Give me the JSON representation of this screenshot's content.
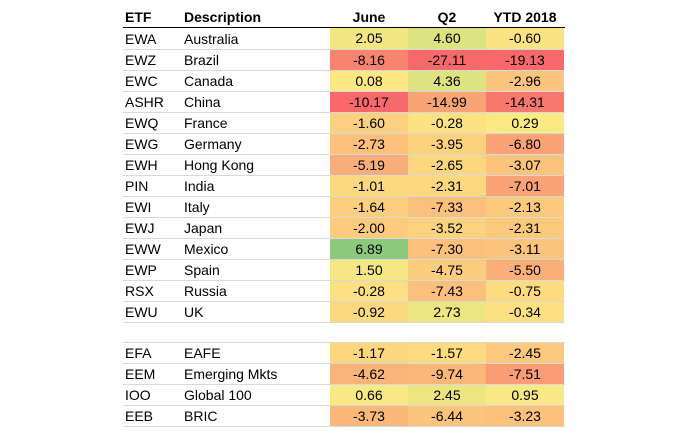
{
  "headers": {
    "etf": "ETF",
    "description": "Description",
    "june": "June",
    "q2": "Q2",
    "ytd": "YTD 2018"
  },
  "rows": [
    {
      "etf": "EWA",
      "desc": "Australia",
      "june": "2.05",
      "q2": "4.60",
      "ytd": "-0.60",
      "june_color": "#f2e783",
      "q2_color": "#dce381",
      "ytd_color": "#fbe283"
    },
    {
      "etf": "EWZ",
      "desc": "Brazil",
      "june": "-8.16",
      "q2": "-27.11",
      "ytd": "-19.13",
      "june_color": "#f8836e",
      "q2_color": "#f8696b",
      "ytd_color": "#f8696b"
    },
    {
      "etf": "EWC",
      "desc": "Canada",
      "june": "0.08",
      "q2": "4.36",
      "ytd": "-2.96",
      "june_color": "#fde783",
      "q2_color": "#dde381",
      "ytd_color": "#fcc47c"
    },
    {
      "etf": "ASHR",
      "desc": "China",
      "june": "-10.17",
      "q2": "-14.99",
      "ytd": "-14.31",
      "june_color": "#f8696b",
      "q2_color": "#f9a475",
      "ytd_color": "#f8786d"
    },
    {
      "etf": "EWQ",
      "desc": "France",
      "june": "-1.60",
      "q2": "-0.28",
      "ytd": "0.29",
      "june_color": "#fcd07f",
      "q2_color": "#fde282",
      "ytd_color": "#fde983"
    },
    {
      "etf": "EWG",
      "desc": "Germany",
      "june": "-2.73",
      "q2": "-3.95",
      "ytd": "-6.80",
      "june_color": "#fbc07b",
      "q2_color": "#fdd27f",
      "ytd_color": "#fba276"
    },
    {
      "etf": "EWH",
      "desc": "Hong Kong",
      "june": "-5.19",
      "q2": "-2.65",
      "ytd": "-3.07",
      "june_color": "#f9ad78",
      "q2_color": "#fdd780",
      "ytd_color": "#fcc37c"
    },
    {
      "etf": "PIN",
      "desc": "India",
      "june": "-1.01",
      "q2": "-2.31",
      "ytd": "-7.01",
      "june_color": "#fcd880",
      "q2_color": "#fdd880",
      "ytd_color": "#fba276"
    },
    {
      "etf": "EWI",
      "desc": "Italy",
      "june": "-1.64",
      "q2": "-7.33",
      "ytd": "-2.13",
      "june_color": "#fccf7f",
      "q2_color": "#fbc17c",
      "ytd_color": "#fcca7d"
    },
    {
      "etf": "EWJ",
      "desc": "Japan",
      "june": "-2.00",
      "q2": "-3.52",
      "ytd": "-2.31",
      "june_color": "#fccb7e",
      "q2_color": "#fdd37f",
      "ytd_color": "#fcc97d"
    },
    {
      "etf": "EWW",
      "desc": "Mexico",
      "june": "6.89",
      "q2": "-7.30",
      "ytd": "-3.11",
      "june_color": "#8dc97c",
      "q2_color": "#fbc17c",
      "ytd_color": "#fcc37c"
    },
    {
      "etf": "EWP",
      "desc": "Spain",
      "june": "1.50",
      "q2": "-4.75",
      "ytd": "-5.50",
      "june_color": "#f5e884",
      "q2_color": "#fccd7e",
      "ytd_color": "#fbb079"
    },
    {
      "etf": "RSX",
      "desc": "Russia",
      "june": "-0.28",
      "q2": "-7.43",
      "ytd": "-0.75",
      "june_color": "#fde083",
      "q2_color": "#fbc07b",
      "ytd_color": "#fddb81"
    },
    {
      "etf": "EWU",
      "desc": "UK",
      "june": "-0.92",
      "q2": "2.73",
      "ytd": "-0.34",
      "june_color": "#fcd980",
      "q2_color": "#ebe582",
      "ytd_color": "#fde082"
    }
  ],
  "rows2": [
    {
      "etf": "EFA",
      "desc": "EAFE",
      "june": "-1.17",
      "q2": "-1.57",
      "ytd": "-2.45",
      "june_color": "#fcd780",
      "q2_color": "#fddb81",
      "ytd_color": "#fcc87d"
    },
    {
      "etf": "EEM",
      "desc": "Emerging Mkts",
      "june": "-4.62",
      "q2": "-9.74",
      "ytd": "-7.51",
      "june_color": "#f9b479",
      "q2_color": "#fbb779",
      "ytd_color": "#fa9c75"
    },
    {
      "etf": "IOO",
      "desc": "Global 100",
      "june": "0.66",
      "q2": "2.45",
      "ytd": "0.95",
      "june_color": "#f8e984",
      "q2_color": "#eee582",
      "ytd_color": "#f8e984"
    },
    {
      "etf": "EEB",
      "desc": "BRIC",
      "june": "-3.73",
      "q2": "-6.44",
      "ytd": "-3.23",
      "june_color": "#fab97a",
      "q2_color": "#fcc47c",
      "ytd_color": "#fcc17c"
    }
  ]
}
